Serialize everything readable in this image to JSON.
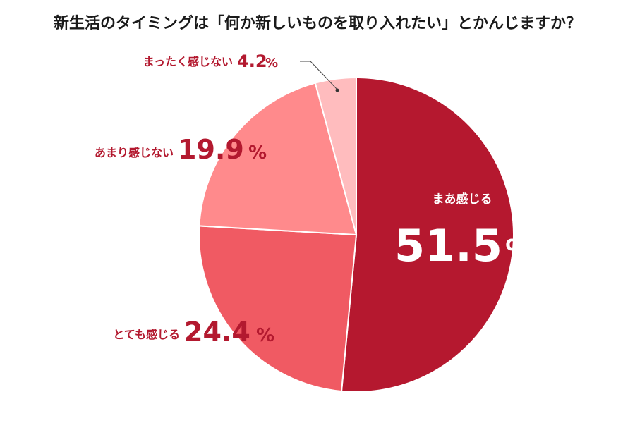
{
  "chart_data": {
    "type": "pie",
    "title": "新生活のタイミングは「何か新しいものを取り入れたい」とかんじますか？",
    "start_angle_deg": 0,
    "direction": "clockwise",
    "slices": [
      {
        "label": "まあ感じる",
        "value": 51.5,
        "value_text": "51.5",
        "unit": "%",
        "color": "#b5182f",
        "label_color": "#ffffff"
      },
      {
        "label": "とても感じる",
        "value": 24.4,
        "value_text": "24.4",
        "unit": "%",
        "color": "#f05a63",
        "label_color": "#b3192f"
      },
      {
        "label": "あまり感じない",
        "value": 19.9,
        "value_text": "19.9",
        "unit": "%",
        "color": "#ff8a8c",
        "label_color": "#b3192f"
      },
      {
        "label": "まったく感じない",
        "value": 4.2,
        "value_text": "4.2",
        "unit": "%",
        "color": "#ffbcbe",
        "label_color": "#b3192f"
      }
    ]
  }
}
